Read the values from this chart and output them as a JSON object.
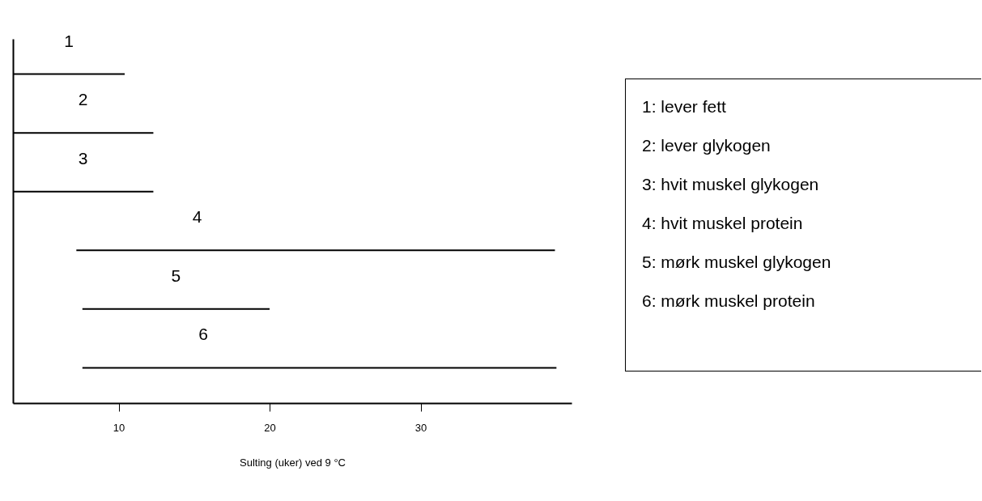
{
  "chart_data": {
    "type": "bar",
    "orientation": "horizontal",
    "xlabel": "Sulting (uker) ved 9 °C",
    "categories": [
      "1",
      "2",
      "3",
      "4",
      "5",
      "6"
    ],
    "base": [
      3,
      3,
      3,
      7.2,
      7.6,
      7.6
    ],
    "values": [
      7.4,
      9.3,
      9.3,
      31.7,
      12.4,
      31.4
    ],
    "color": "#000000",
    "xlim": [
      3,
      40
    ],
    "xticks": [
      10,
      20,
      30
    ],
    "tick_labels": "x",
    "grid": false,
    "annotations": [
      "1: lever fett",
      "2: lever glykogen",
      "3: hvit muskel glykogen",
      "4: hvit muskel protein",
      "5: mørk muskel glykogen",
      "6: mørk muskel protein"
    ]
  }
}
